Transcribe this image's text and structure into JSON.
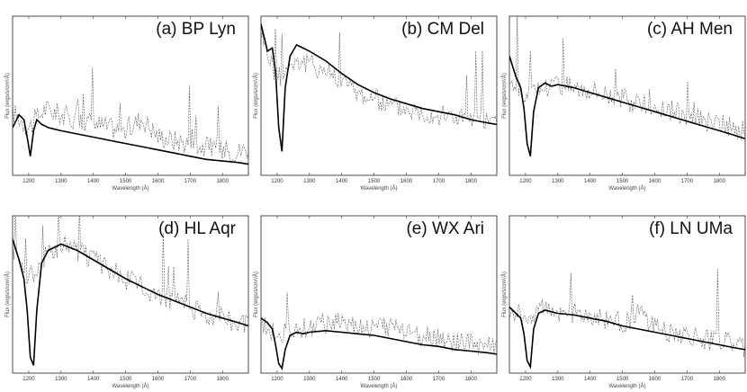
{
  "figure": {
    "chart_data": [
      {
        "type": "line",
        "title": "(a) BP Lyn",
        "xlabel": "Wavelength (Å)",
        "ylabel": "Flux (ergs/s/cm²/Å)",
        "xticks": [
          1200,
          1300,
          1400,
          1500,
          1600,
          1700,
          1800
        ],
        "xlim": [
          1150,
          1880
        ],
        "ylim": [
          0,
          1
        ],
        "series": [
          {
            "style": "observed-noisy",
            "x": [
              1150,
              1200,
              1250,
              1300,
              1350,
              1400,
              1450,
              1500,
              1550,
              1600,
              1650,
              1700,
              1750,
              1800,
              1850,
              1880
            ],
            "y": [
              0.4,
              0.3,
              0.42,
              0.38,
              0.35,
              0.33,
              0.3,
              0.28,
              0.36,
              0.25,
              0.22,
              0.2,
              0.18,
              0.16,
              0.15,
              0.17
            ]
          },
          {
            "style": "model",
            "x": [
              1150,
              1170,
              1185,
              1195,
              1205,
              1215,
              1225,
              1240,
              1260,
              1280,
              1300,
              1350,
              1400,
              1450,
              1500,
              1550,
              1600,
              1650,
              1700,
              1750,
              1800,
              1850,
              1880
            ],
            "y": [
              0.3,
              0.38,
              0.35,
              0.24,
              0.12,
              0.28,
              0.35,
              0.32,
              0.3,
              0.29,
              0.28,
              0.26,
              0.24,
              0.22,
              0.2,
              0.18,
              0.16,
              0.14,
              0.12,
              0.1,
              0.09,
              0.08,
              0.07
            ]
          }
        ]
      },
      {
        "type": "line",
        "title": "(b) CM Del",
        "xlabel": "Wavelength (Å)",
        "ylabel": "Flux (ergs/s/cm²/Å)",
        "xticks": [
          1200,
          1300,
          1400,
          1500,
          1600,
          1700,
          1800
        ],
        "xlim": [
          1150,
          1880
        ],
        "ylim": [
          0,
          1
        ],
        "series": [
          {
            "style": "observed-noisy",
            "x": [
              1150,
              1200,
              1250,
              1300,
              1350,
              1400,
              1450,
              1500,
              1550,
              1600,
              1650,
              1700,
              1750,
              1800,
              1850,
              1880
            ],
            "y": [
              0.9,
              0.6,
              0.72,
              0.7,
              0.66,
              0.6,
              0.52,
              0.48,
              0.44,
              0.42,
              0.4,
              0.38,
              0.37,
              0.36,
              0.33,
              0.32
            ]
          },
          {
            "style": "model",
            "x": [
              1150,
              1170,
              1185,
              1195,
              1205,
              1215,
              1225,
              1240,
              1260,
              1280,
              1300,
              1350,
              1400,
              1450,
              1500,
              1550,
              1600,
              1650,
              1700,
              1750,
              1800,
              1850,
              1880
            ],
            "y": [
              0.95,
              0.78,
              0.8,
              0.65,
              0.3,
              0.15,
              0.55,
              0.75,
              0.82,
              0.8,
              0.78,
              0.72,
              0.64,
              0.57,
              0.52,
              0.48,
              0.45,
              0.42,
              0.4,
              0.38,
              0.35,
              0.33,
              0.32
            ]
          }
        ]
      },
      {
        "type": "line",
        "title": "(c) AH Men",
        "xlabel": "Wavelength (Å)",
        "ylabel": "Flux (ergs/s/cm²/Å)",
        "xticks": [
          1200,
          1300,
          1400,
          1500,
          1600,
          1700,
          1800
        ],
        "xlim": [
          1150,
          1880
        ],
        "ylim": [
          0,
          1
        ],
        "series": [
          {
            "style": "observed-noisy",
            "x": [
              1150,
              1200,
              1250,
              1300,
              1350,
              1400,
              1450,
              1500,
              1550,
              1600,
              1650,
              1700,
              1750,
              1800,
              1850,
              1880
            ],
            "y": [
              0.6,
              0.5,
              0.55,
              0.58,
              0.56,
              0.55,
              0.52,
              0.48,
              0.45,
              0.42,
              0.4,
              0.38,
              0.35,
              0.32,
              0.29,
              0.27
            ]
          },
          {
            "style": "model",
            "x": [
              1150,
              1170,
              1185,
              1195,
              1205,
              1215,
              1225,
              1240,
              1260,
              1280,
              1300,
              1350,
              1400,
              1450,
              1500,
              1550,
              1600,
              1650,
              1700,
              1750,
              1800,
              1850,
              1880
            ],
            "y": [
              0.75,
              0.62,
              0.55,
              0.42,
              0.2,
              0.12,
              0.4,
              0.55,
              0.58,
              0.56,
              0.57,
              0.55,
              0.52,
              0.49,
              0.46,
              0.43,
              0.4,
              0.37,
              0.34,
              0.31,
              0.28,
              0.25,
              0.23
            ]
          }
        ]
      },
      {
        "type": "line",
        "title": "(d) HL Aqr",
        "xlabel": "Wavelength (Å)",
        "ylabel": "Flux (ergs/s/cm²/Å)",
        "xticks": [
          1200,
          1300,
          1400,
          1500,
          1600,
          1700,
          1800
        ],
        "xlim": [
          1150,
          1880
        ],
        "ylim": [
          0,
          1
        ],
        "series": [
          {
            "style": "observed-noisy",
            "x": [
              1150,
              1200,
              1250,
              1300,
              1350,
              1400,
              1450,
              1500,
              1550,
              1600,
              1650,
              1700,
              1750,
              1800,
              1850,
              1880
            ],
            "y": [
              0.8,
              0.6,
              0.75,
              0.82,
              0.78,
              0.72,
              0.66,
              0.6,
              0.55,
              0.5,
              0.46,
              0.42,
              0.38,
              0.35,
              0.32,
              0.3
            ]
          },
          {
            "style": "model",
            "x": [
              1150,
              1170,
              1185,
              1195,
              1205,
              1215,
              1225,
              1240,
              1260,
              1280,
              1300,
              1350,
              1400,
              1450,
              1500,
              1550,
              1600,
              1650,
              1700,
              1750,
              1800,
              1850,
              1880
            ],
            "y": [
              0.85,
              0.72,
              0.6,
              0.4,
              0.1,
              0.05,
              0.4,
              0.7,
              0.78,
              0.8,
              0.82,
              0.78,
              0.72,
              0.66,
              0.6,
              0.55,
              0.5,
              0.46,
              0.42,
              0.38,
              0.35,
              0.32,
              0.3
            ]
          }
        ]
      },
      {
        "type": "line",
        "title": "(e) WX Ari",
        "xlabel": "Wavelength (Å)",
        "ylabel": "Flux (ergs/s/cm²/Å)",
        "xticks": [
          1200,
          1300,
          1400,
          1500,
          1600,
          1700,
          1800
        ],
        "xlim": [
          1150,
          1880
        ],
        "ylim": [
          0,
          1
        ],
        "series": [
          {
            "style": "observed-noisy",
            "x": [
              1150,
              1200,
              1250,
              1300,
              1350,
              1400,
              1450,
              1500,
              1550,
              1600,
              1650,
              1700,
              1750,
              1800,
              1850,
              1880
            ],
            "y": [
              0.3,
              0.25,
              0.28,
              0.3,
              0.32,
              0.34,
              0.3,
              0.28,
              0.3,
              0.27,
              0.24,
              0.22,
              0.2,
              0.18,
              0.17,
              0.16
            ]
          },
          {
            "style": "model",
            "x": [
              1150,
              1170,
              1185,
              1195,
              1205,
              1215,
              1225,
              1240,
              1260,
              1280,
              1300,
              1350,
              1400,
              1450,
              1500,
              1550,
              1600,
              1650,
              1700,
              1750,
              1800,
              1850,
              1880
            ],
            "y": [
              0.35,
              0.32,
              0.28,
              0.18,
              0.06,
              0.03,
              0.15,
              0.24,
              0.26,
              0.25,
              0.26,
              0.27,
              0.26,
              0.25,
              0.24,
              0.22,
              0.2,
              0.18,
              0.17,
              0.15,
              0.14,
              0.13,
              0.12
            ]
          }
        ]
      },
      {
        "type": "line",
        "title": "(f) LN UMa",
        "xlabel": "Wavelength (Å)",
        "ylabel": "Flux (ergs/s/cm²/Å)",
        "xticks": [
          1200,
          1300,
          1400,
          1500,
          1600,
          1700,
          1800
        ],
        "xlim": [
          1150,
          1880
        ],
        "ylim": [
          0,
          1
        ],
        "series": [
          {
            "style": "observed-noisy",
            "x": [
              1150,
              1200,
              1250,
              1300,
              1350,
              1400,
              1450,
              1500,
              1550,
              1600,
              1650,
              1700,
              1750,
              1800,
              1850,
              1880
            ],
            "y": [
              0.4,
              0.35,
              0.42,
              0.4,
              0.38,
              0.36,
              0.34,
              0.32,
              0.38,
              0.3,
              0.26,
              0.24,
              0.22,
              0.2,
              0.18,
              0.16
            ]
          },
          {
            "style": "model",
            "x": [
              1150,
              1170,
              1185,
              1195,
              1205,
              1215,
              1225,
              1240,
              1260,
              1280,
              1300,
              1350,
              1400,
              1450,
              1500,
              1550,
              1600,
              1650,
              1700,
              1750,
              1800,
              1850,
              1880
            ],
            "y": [
              0.42,
              0.38,
              0.35,
              0.25,
              0.08,
              0.04,
              0.28,
              0.38,
              0.4,
              0.39,
              0.38,
              0.37,
              0.35,
              0.33,
              0.3,
              0.28,
              0.26,
              0.24,
              0.22,
              0.2,
              0.18,
              0.16,
              0.15
            ]
          }
        ]
      }
    ]
  }
}
